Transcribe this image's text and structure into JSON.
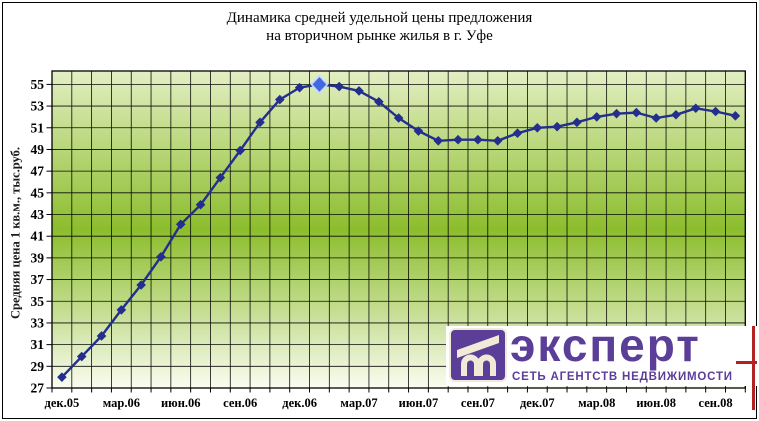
{
  "title": {
    "line1": "Динамика средней удельной цены предложения",
    "line2": "на вторичном рынке жилья в г. Уфе"
  },
  "y_axis": {
    "title": "Средняя цена 1 кв.м., тыс.руб.",
    "tick_min": 27,
    "tick_max": 55,
    "tick_step": 2
  },
  "x_axis": {
    "tick_labels": [
      "дек.05",
      "мар.06",
      "июн.06",
      "сен.06",
      "дек.06",
      "мар.07",
      "июн.07",
      "сен.07",
      "дек.07",
      "мар.08",
      "июн.08",
      "сен.08"
    ],
    "points_per_label": 3
  },
  "chart_data": {
    "type": "line",
    "title": "Динамика средней удельной цены предложения на вторичном рынке жилья в г. Уфе",
    "ylabel": "Средняя цена 1 кв.м., тыс.руб.",
    "ylim": [
      27,
      55
    ],
    "grid": true,
    "x_tick_labels": [
      "дек.05",
      "мар.06",
      "июн.06",
      "сен.06",
      "дек.06",
      "мар.07",
      "июн.07",
      "сен.07",
      "дек.07",
      "мар.08",
      "июн.08",
      "сен.08"
    ],
    "points_per_tick_label": 3,
    "values": [
      28.0,
      29.9,
      31.8,
      34.2,
      36.5,
      39.1,
      42.1,
      43.9,
      46.4,
      48.9,
      51.5,
      53.6,
      54.7,
      55.0,
      54.8,
      54.4,
      53.4,
      51.9,
      50.7,
      49.8,
      49.9,
      49.9,
      49.8,
      50.5,
      51.0,
      51.1,
      51.5,
      52.0,
      52.3,
      52.4,
      51.9,
      52.2,
      52.8,
      52.5,
      52.1
    ],
    "highlight_index": 13,
    "highlight_value": 55.0
  },
  "logo": {
    "brand": "эксперт",
    "subtitle": "СЕТЬ АГЕНТСТВ НЕДВИЖИМОСТИ"
  },
  "colors": {
    "line": "#232E8E",
    "marker": "#232E8E",
    "highlight_fill": "#4169E1",
    "highlight_stroke": "#C7D7F5",
    "grid": "#000000",
    "gradient_top": "#E3EFC3",
    "gradient_mid": "#8CBD2D",
    "gradient_bottom": "#FAFCF0",
    "logo_purple": "#5B3E97",
    "logo_cream": "#F0EAD6",
    "logo_red": "#B22222"
  }
}
